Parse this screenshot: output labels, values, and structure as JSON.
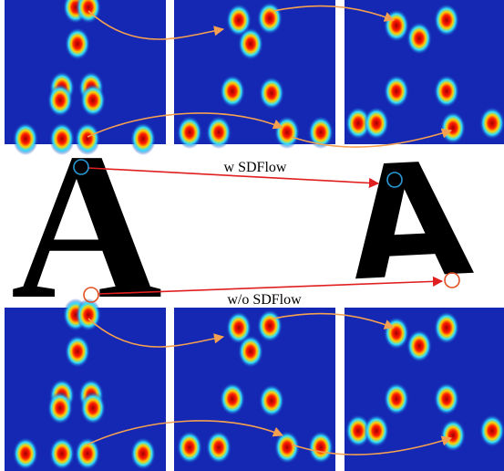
{
  "labels": {
    "top": "w SDFlow",
    "bottom": "w/o SDFlow"
  },
  "glyphs": {
    "source": "A",
    "target": "A"
  }
}
